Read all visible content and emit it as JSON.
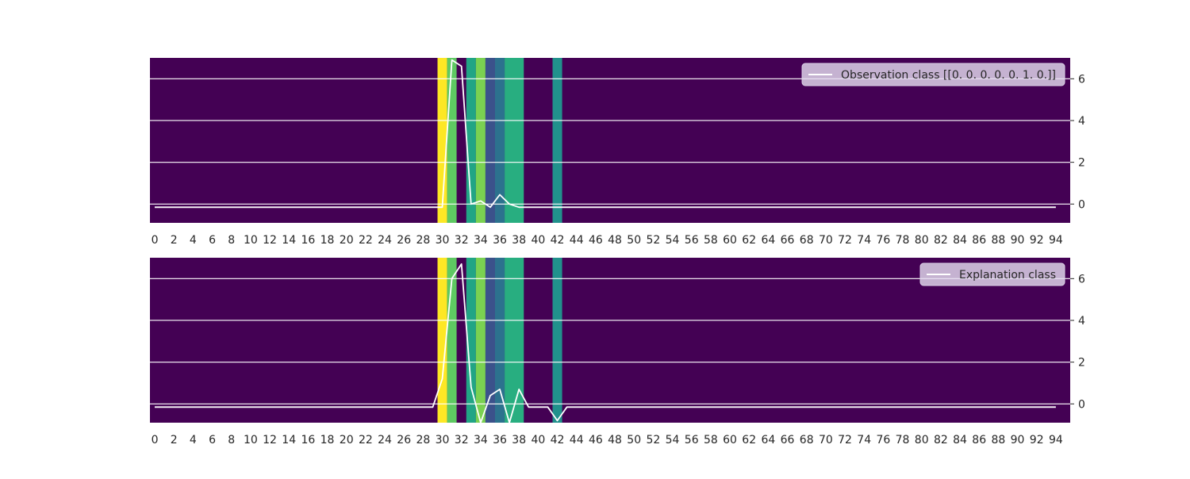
{
  "chart_data": [
    {
      "type": "line",
      "background": "heatmap",
      "legend_label": "Observation class [[0. 0. 0. 0. 0. 1. 0.]]",
      "legend_position": "upper right",
      "x_ticks": [
        0,
        2,
        4,
        6,
        8,
        10,
        12,
        14,
        16,
        18,
        20,
        22,
        24,
        26,
        28,
        30,
        32,
        34,
        36,
        38,
        40,
        42,
        44,
        46,
        48,
        50,
        52,
        54,
        56,
        58,
        60,
        62,
        64,
        66,
        68,
        70,
        72,
        74,
        76,
        78,
        80,
        82,
        84,
        86,
        88,
        90,
        92,
        94
      ],
      "y_ticks": [
        0,
        2,
        4,
        6
      ],
      "y_axis_side": "right",
      "xlim": [
        -0.5,
        95.5
      ],
      "ylim": [
        -0.9,
        7.0
      ],
      "grid": "horizontal",
      "line_color": "#ffffff",
      "heatmap_default_color": "#440154",
      "heatmap_segments": [
        {
          "start": 30,
          "end": 31,
          "color": "#fde725"
        },
        {
          "start": 31,
          "end": 32,
          "color": "#5ec962"
        },
        {
          "start": 32,
          "end": 33,
          "color": "#440154"
        },
        {
          "start": 33,
          "end": 34,
          "color": "#21a585"
        },
        {
          "start": 34,
          "end": 35,
          "color": "#7ad151"
        },
        {
          "start": 35,
          "end": 36,
          "color": "#3b528b"
        },
        {
          "start": 36,
          "end": 37,
          "color": "#2c728e"
        },
        {
          "start": 37,
          "end": 39,
          "color": "#28ae80"
        },
        {
          "start": 42,
          "end": 43,
          "color": "#21918c"
        }
      ],
      "x": [
        0,
        1,
        2,
        3,
        4,
        5,
        6,
        7,
        8,
        9,
        10,
        11,
        12,
        13,
        14,
        15,
        16,
        17,
        18,
        19,
        20,
        21,
        22,
        23,
        24,
        25,
        26,
        27,
        28,
        29,
        30,
        31,
        32,
        33,
        34,
        35,
        36,
        37,
        38,
        39,
        40,
        41,
        42,
        43,
        44,
        45,
        46,
        47,
        48,
        49,
        50,
        51,
        52,
        53,
        54,
        55,
        56,
        57,
        58,
        59,
        60,
        61,
        62,
        63,
        64,
        65,
        66,
        67,
        68,
        69,
        70,
        71,
        72,
        73,
        74,
        75,
        76,
        77,
        78,
        79,
        80,
        81,
        82,
        83,
        84,
        85,
        86,
        87,
        88,
        89,
        90,
        91,
        92,
        93,
        94
      ],
      "y": [
        -0.15,
        -0.15,
        -0.15,
        -0.15,
        -0.15,
        -0.15,
        -0.15,
        -0.15,
        -0.15,
        -0.15,
        -0.15,
        -0.15,
        -0.15,
        -0.15,
        -0.15,
        -0.15,
        -0.15,
        -0.15,
        -0.15,
        -0.15,
        -0.15,
        -0.15,
        -0.15,
        -0.15,
        -0.15,
        -0.15,
        -0.15,
        -0.15,
        -0.15,
        -0.15,
        -0.15,
        6.9,
        6.6,
        0.0,
        0.15,
        -0.15,
        0.45,
        0.0,
        -0.15,
        -0.15,
        -0.15,
        -0.15,
        -0.15,
        -0.15,
        -0.15,
        -0.15,
        -0.15,
        -0.15,
        -0.15,
        -0.15,
        -0.15,
        -0.15,
        -0.15,
        -0.15,
        -0.15,
        -0.15,
        -0.15,
        -0.15,
        -0.15,
        -0.15,
        -0.15,
        -0.15,
        -0.15,
        -0.15,
        -0.15,
        -0.15,
        -0.15,
        -0.15,
        -0.15,
        -0.15,
        -0.15,
        -0.15,
        -0.15,
        -0.15,
        -0.15,
        -0.15,
        -0.15,
        -0.15,
        -0.15,
        -0.15,
        -0.15,
        -0.15,
        -0.15,
        -0.15,
        -0.15,
        -0.15,
        -0.15,
        -0.15,
        -0.15,
        -0.15,
        -0.15,
        -0.15,
        -0.15,
        -0.15,
        -0.15
      ]
    },
    {
      "type": "line",
      "background": "heatmap",
      "legend_label": "Explanation class",
      "legend_position": "upper right",
      "x_ticks": [
        0,
        2,
        4,
        6,
        8,
        10,
        12,
        14,
        16,
        18,
        20,
        22,
        24,
        26,
        28,
        30,
        32,
        34,
        36,
        38,
        40,
        42,
        44,
        46,
        48,
        50,
        52,
        54,
        56,
        58,
        60,
        62,
        64,
        66,
        68,
        70,
        72,
        74,
        76,
        78,
        80,
        82,
        84,
        86,
        88,
        90,
        92,
        94
      ],
      "y_ticks": [
        0,
        2,
        4,
        6
      ],
      "y_axis_side": "right",
      "xlim": [
        -0.5,
        95.5
      ],
      "ylim": [
        -0.9,
        7.0
      ],
      "grid": "horizontal",
      "line_color": "#ffffff",
      "heatmap_default_color": "#440154",
      "heatmap_segments": [
        {
          "start": 30,
          "end": 31,
          "color": "#fde725"
        },
        {
          "start": 31,
          "end": 32,
          "color": "#5ec962"
        },
        {
          "start": 32,
          "end": 33,
          "color": "#440154"
        },
        {
          "start": 33,
          "end": 34,
          "color": "#21a585"
        },
        {
          "start": 34,
          "end": 35,
          "color": "#7ad151"
        },
        {
          "start": 35,
          "end": 36,
          "color": "#3b528b"
        },
        {
          "start": 36,
          "end": 37,
          "color": "#2c728e"
        },
        {
          "start": 37,
          "end": 39,
          "color": "#28ae80"
        },
        {
          "start": 42,
          "end": 43,
          "color": "#21918c"
        }
      ],
      "x": [
        0,
        1,
        2,
        3,
        4,
        5,
        6,
        7,
        8,
        9,
        10,
        11,
        12,
        13,
        14,
        15,
        16,
        17,
        18,
        19,
        20,
        21,
        22,
        23,
        24,
        25,
        26,
        27,
        28,
        29,
        30,
        31,
        32,
        33,
        34,
        35,
        36,
        37,
        38,
        39,
        40,
        41,
        42,
        43,
        44,
        45,
        46,
        47,
        48,
        49,
        50,
        51,
        52,
        53,
        54,
        55,
        56,
        57,
        58,
        59,
        60,
        61,
        62,
        63,
        64,
        65,
        66,
        67,
        68,
        69,
        70,
        71,
        72,
        73,
        74,
        75,
        76,
        77,
        78,
        79,
        80,
        81,
        82,
        83,
        84,
        85,
        86,
        87,
        88,
        89,
        90,
        91,
        92,
        93,
        94
      ],
      "y": [
        -0.15,
        -0.15,
        -0.15,
        -0.15,
        -0.15,
        -0.15,
        -0.15,
        -0.15,
        -0.15,
        -0.15,
        -0.15,
        -0.15,
        -0.15,
        -0.15,
        -0.15,
        -0.15,
        -0.15,
        -0.15,
        -0.15,
        -0.15,
        -0.15,
        -0.15,
        -0.15,
        -0.15,
        -0.15,
        -0.15,
        -0.15,
        -0.15,
        -0.15,
        -0.15,
        1.2,
        6.0,
        6.7,
        0.8,
        -0.9,
        0.4,
        0.7,
        -0.9,
        0.7,
        -0.15,
        -0.15,
        -0.15,
        -0.8,
        -0.15,
        -0.15,
        -0.15,
        -0.15,
        -0.15,
        -0.15,
        -0.15,
        -0.15,
        -0.15,
        -0.15,
        -0.15,
        -0.15,
        -0.15,
        -0.15,
        -0.15,
        -0.15,
        -0.15,
        -0.15,
        -0.15,
        -0.15,
        -0.15,
        -0.15,
        -0.15,
        -0.15,
        -0.15,
        -0.15,
        -0.15,
        -0.15,
        -0.15,
        -0.15,
        -0.15,
        -0.15,
        -0.15,
        -0.15,
        -0.15,
        -0.15,
        -0.15,
        -0.15,
        -0.15,
        -0.15,
        -0.15,
        -0.15,
        -0.15,
        -0.15,
        -0.15,
        -0.15,
        -0.15,
        -0.15,
        -0.15,
        -0.15,
        -0.15,
        -0.15
      ]
    }
  ]
}
